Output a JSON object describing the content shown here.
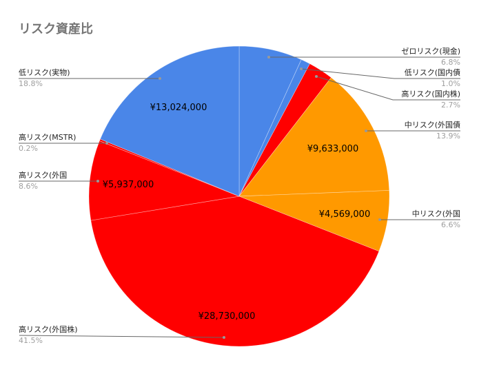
{
  "chart_data": {
    "type": "pie",
    "title": "リスク資産比",
    "start": "top",
    "direction": "clockwise",
    "slices": [
      {
        "name": "ゼロリスク(現金)",
        "percent": "6.8%",
        "share": 6.8,
        "value_label": "",
        "color": "#4a86e8"
      },
      {
        "name": "低リスク(国内債",
        "percent": "1.0%",
        "share": 1.0,
        "value_label": "",
        "color": "#4a86e8"
      },
      {
        "name": "高リスク(国内株)",
        "percent": "2.7%",
        "share": 2.7,
        "value_label": "",
        "color": "#ff0000"
      },
      {
        "name": "中リスク(外国債",
        "percent": "13.9%",
        "share": 13.9,
        "value_label": "¥9,633,000",
        "color": "#ff9900"
      },
      {
        "name": "中リスク(外国",
        "percent": "6.6%",
        "share": 6.6,
        "value_label": "¥4,569,000",
        "color": "#ff9900"
      },
      {
        "name": "高リスク(外国株)",
        "percent": "41.5%",
        "share": 41.5,
        "value_label": "¥28,730,000",
        "color": "#ff0000"
      },
      {
        "name": "高リスク(外国",
        "percent": "8.6%",
        "share": 8.6,
        "value_label": "¥5,937,000",
        "color": "#ff0000"
      },
      {
        "name": "高リスク(MSTR)",
        "percent": "0.2%",
        "share": 0.2,
        "value_label": "",
        "color": "#ff0000"
      },
      {
        "name": "低リスク(実物)",
        "percent": "18.8%",
        "share": 18.8,
        "value_label": "¥13,024,000",
        "color": "#4a86e8"
      }
    ]
  }
}
